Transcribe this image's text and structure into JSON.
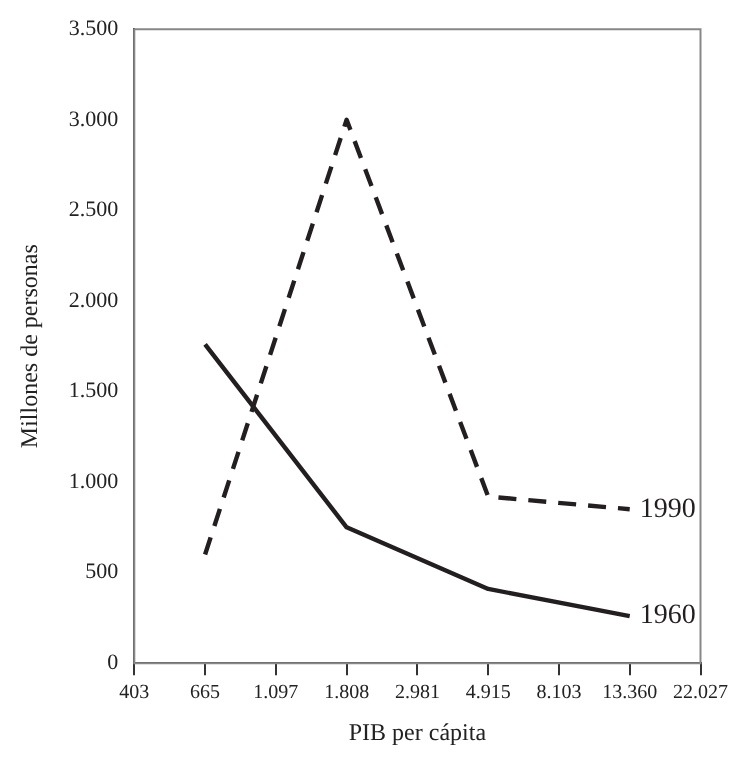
{
  "chart_data": {
    "type": "line",
    "xlabel": "PIB per cápita",
    "ylabel": "Millones de personas",
    "categories": [
      "403",
      "665",
      "1.097",
      "1.808",
      "2.981",
      "4.915",
      "8.103",
      "13.360",
      "22.027"
    ],
    "series": [
      {
        "name": "1960",
        "color": "#231f20",
        "line_style": "solid",
        "values": [
          null,
          1760,
          null,
          750,
          null,
          410,
          null,
          260,
          null
        ]
      },
      {
        "name": "1990",
        "color": "#231f20",
        "line_style": "dashed",
        "values": [
          null,
          600,
          null,
          3000,
          null,
          920,
          null,
          850,
          null
        ]
      }
    ],
    "ylim": [
      0,
      3500
    ],
    "yticks": [
      {
        "value": 0,
        "label": "0"
      },
      {
        "value": 500,
        "label": "500"
      },
      {
        "value": 1000,
        "label": "1.000"
      },
      {
        "value": 1500,
        "label": "1.500"
      },
      {
        "value": 2000,
        "label": "2.000"
      },
      {
        "value": 2500,
        "label": "2.500"
      },
      {
        "value": 3000,
        "label": "3.000"
      },
      {
        "value": 3500,
        "label": "3.500"
      }
    ],
    "grid": false,
    "legend": false,
    "marker": "none"
  }
}
